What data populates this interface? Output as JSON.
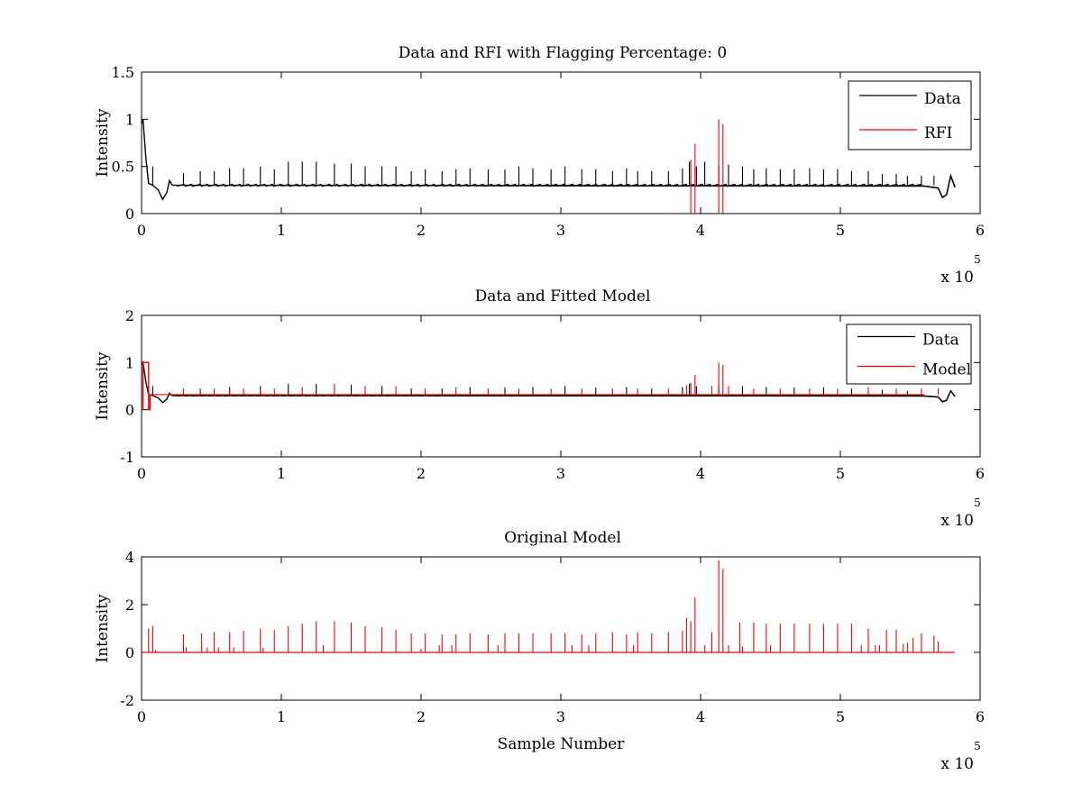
{
  "chart_data": [
    {
      "type": "line",
      "title": "Data and RFI with Flagging Percentage: 0",
      "xlabel": "",
      "ylabel": "Intensity",
      "xlim": [
        0,
        6
      ],
      "ylim": [
        0,
        1.5
      ],
      "xticks": [
        "0",
        "1",
        "2",
        "3",
        "4",
        "5",
        "6"
      ],
      "yticks": [
        "0",
        "0.5",
        "1",
        "1.5"
      ],
      "x_multiplier": {
        "base": "x 10",
        "power": "5"
      },
      "legend": {
        "position": "top-right",
        "entries": [
          {
            "label": "Data",
            "color": "#000000"
          },
          {
            "label": "RFI",
            "color": "#ff0000"
          }
        ]
      },
      "series": [
        {
          "name": "Data",
          "color": "#000000",
          "baseline": 0.3,
          "x": [
            0,
            0.01,
            0.03,
            0.05,
            0.08,
            0.12,
            0.15,
            0.18,
            0.2,
            0.22,
            0.25,
            5.6,
            5.7,
            5.73,
            5.76,
            5.79,
            5.82
          ],
          "y": [
            0.95,
            1.0,
            0.6,
            0.32,
            0.3,
            0.25,
            0.15,
            0.22,
            0.35,
            0.3,
            0.3,
            0.29,
            0.27,
            0.17,
            0.2,
            0.4,
            0.28
          ],
          "spikes_x": [
            0.08,
            0.3,
            0.42,
            0.52,
            0.63,
            0.73,
            0.85,
            0.95,
            1.05,
            1.15,
            1.25,
            1.38,
            1.5,
            1.6,
            1.72,
            1.82,
            1.93,
            2.03,
            2.15,
            2.25,
            2.35,
            2.48,
            2.6,
            2.7,
            2.8,
            2.93,
            3.03,
            3.15,
            3.25,
            3.37,
            3.47,
            3.55,
            3.65,
            3.77,
            3.87,
            3.92,
            3.97,
            4.03,
            4.13,
            4.2,
            4.3,
            4.38,
            4.47,
            4.57,
            4.67,
            4.78,
            4.88,
            4.98,
            5.08,
            5.2,
            5.3,
            5.4,
            5.48,
            5.58,
            5.67
          ],
          "spikes_y": [
            0.5,
            0.43,
            0.45,
            0.45,
            0.48,
            0.48,
            0.5,
            0.47,
            0.55,
            0.55,
            0.55,
            0.53,
            0.53,
            0.5,
            0.5,
            0.5,
            0.45,
            0.47,
            0.45,
            0.47,
            0.48,
            0.47,
            0.47,
            0.5,
            0.48,
            0.47,
            0.5,
            0.47,
            0.47,
            0.45,
            0.48,
            0.45,
            0.45,
            0.45,
            0.48,
            0.55,
            0.5,
            0.55,
            0.5,
            0.52,
            0.5,
            0.47,
            0.48,
            0.47,
            0.47,
            0.48,
            0.47,
            0.47,
            0.45,
            0.45,
            0.42,
            0.42,
            0.4,
            0.4,
            0.4
          ]
        },
        {
          "name": "RFI",
          "color": "#ff0000",
          "spikes_x": [
            3.93,
            3.96,
            4.13,
            4.16
          ],
          "spikes_y": [
            0.57,
            0.74,
            1.0,
            0.95
          ]
        }
      ]
    },
    {
      "type": "line",
      "title": "Data and Fitted Model",
      "xlabel": "",
      "ylabel": "Intensity",
      "xlim": [
        0,
        6
      ],
      "ylim": [
        -1,
        2
      ],
      "xticks": [
        "0",
        "1",
        "2",
        "3",
        "4",
        "5",
        "6"
      ],
      "yticks": [
        "-1",
        "0",
        "1",
        "2"
      ],
      "x_multiplier": {
        "base": "x 10",
        "power": "5"
      },
      "legend": {
        "position": "top-right",
        "entries": [
          {
            "label": "Data",
            "color": "#000000"
          },
          {
            "label": "Model",
            "color": "#ff0000"
          }
        ]
      },
      "series": [
        {
          "name": "Data",
          "color": "#000000",
          "baseline": 0.3,
          "x": [
            0,
            0.01,
            0.03,
            0.05,
            0.08,
            0.12,
            0.15,
            0.18,
            0.2,
            0.22,
            0.25,
            5.6,
            5.7,
            5.73,
            5.76,
            5.79,
            5.82
          ],
          "y": [
            0.95,
            1.0,
            0.6,
            0.32,
            0.3,
            0.25,
            0.15,
            0.22,
            0.35,
            0.3,
            0.3,
            0.29,
            0.27,
            0.17,
            0.2,
            0.4,
            0.28
          ],
          "spikes_x": [
            0.08,
            0.42,
            0.63,
            0.85,
            1.05,
            1.25,
            1.5,
            1.72,
            1.93,
            2.15,
            2.35,
            2.6,
            2.8,
            3.03,
            3.25,
            3.47,
            3.65,
            3.87,
            3.92,
            3.97,
            4.13,
            4.3,
            4.47,
            4.67,
            4.88,
            5.08,
            5.3,
            5.48
          ],
          "spikes_y": [
            0.5,
            0.45,
            0.48,
            0.5,
            0.55,
            0.55,
            0.53,
            0.5,
            0.45,
            0.45,
            0.48,
            0.47,
            0.48,
            0.5,
            0.47,
            0.48,
            0.45,
            0.48,
            0.55,
            0.5,
            0.5,
            0.5,
            0.48,
            0.47,
            0.47,
            0.45,
            0.42,
            0.4
          ]
        },
        {
          "name": "Model",
          "color": "#ff0000",
          "baseline": 0.32,
          "x": [
            0,
            0.01,
            0.01,
            0.05,
            0.05,
            0.06,
            0.06
          ],
          "y": [
            0,
            0,
            1.0,
            1.0,
            0.0,
            0.0,
            0.32
          ],
          "spikes_x": [
            0.3,
            0.42,
            0.52,
            0.63,
            0.73,
            0.85,
            0.95,
            1.15,
            1.38,
            1.6,
            1.82,
            2.03,
            2.25,
            2.48,
            2.7,
            2.93,
            3.15,
            3.37,
            3.55,
            3.77,
            3.9,
            3.93,
            3.96,
            4.08,
            4.13,
            4.16,
            4.2,
            4.38,
            4.57,
            4.78,
            4.98,
            5.2,
            5.4,
            5.58,
            5.7
          ],
          "spikes_y": [
            0.45,
            0.45,
            0.45,
            0.45,
            0.45,
            0.45,
            0.45,
            0.48,
            0.55,
            0.5,
            0.5,
            0.45,
            0.48,
            0.45,
            0.45,
            0.45,
            0.45,
            0.45,
            0.45,
            0.45,
            0.52,
            0.57,
            0.74,
            0.5,
            1.0,
            0.95,
            0.5,
            0.45,
            0.45,
            0.45,
            0.45,
            0.48,
            0.45,
            0.45,
            0.45
          ]
        }
      ]
    },
    {
      "type": "line",
      "title": "Original Model",
      "xlabel": "Sample Number",
      "ylabel": "Intensity",
      "xlim": [
        0,
        6
      ],
      "ylim": [
        -2,
        4
      ],
      "xticks": [
        "0",
        "1",
        "2",
        "3",
        "4",
        "5",
        "6"
      ],
      "yticks": [
        "-2",
        "0",
        "2",
        "4"
      ],
      "x_multiplier": {
        "base": "x 10",
        "power": "5"
      },
      "legend": null,
      "series": [
        {
          "name": "",
          "color": "#ff0000",
          "baseline": 0,
          "x_end": 5.82,
          "spikes_x": [
            0.05,
            0.08,
            0.1,
            0.3,
            0.32,
            0.43,
            0.47,
            0.52,
            0.55,
            0.63,
            0.66,
            0.73,
            0.85,
            0.87,
            0.95,
            1.05,
            1.15,
            1.25,
            1.3,
            1.38,
            1.5,
            1.6,
            1.72,
            1.82,
            1.93,
            2.0,
            2.03,
            2.13,
            2.15,
            2.22,
            2.25,
            2.35,
            2.48,
            2.55,
            2.6,
            2.7,
            2.8,
            2.93,
            3.03,
            3.08,
            3.15,
            3.2,
            3.25,
            3.37,
            3.47,
            3.52,
            3.55,
            3.65,
            3.77,
            3.87,
            3.9,
            3.93,
            3.96,
            4.03,
            4.08,
            4.13,
            4.16,
            4.2,
            4.28,
            4.3,
            4.38,
            4.47,
            4.5,
            4.57,
            4.67,
            4.78,
            4.88,
            4.98,
            5.08,
            5.15,
            5.2,
            5.25,
            5.28,
            5.33,
            5.4,
            5.45,
            5.48,
            5.52,
            5.58,
            5.67,
            5.7
          ],
          "spikes_y": [
            1.0,
            1.1,
            0.1,
            0.75,
            0.2,
            0.8,
            0.2,
            0.85,
            0.2,
            0.85,
            0.2,
            0.9,
            1.0,
            0.2,
            0.95,
            1.1,
            1.2,
            1.3,
            0.3,
            1.3,
            1.25,
            1.1,
            1.05,
            0.95,
            0.8,
            0.15,
            0.8,
            0.3,
            0.75,
            0.3,
            0.75,
            0.8,
            0.75,
            0.3,
            0.8,
            0.8,
            0.8,
            0.8,
            0.8,
            0.3,
            0.75,
            0.3,
            0.8,
            0.85,
            0.75,
            0.3,
            0.85,
            0.8,
            0.85,
            0.9,
            1.45,
            1.3,
            2.3,
            0.3,
            0.85,
            3.85,
            3.5,
            0.3,
            1.25,
            0.25,
            1.25,
            1.2,
            0.3,
            1.2,
            1.2,
            1.2,
            1.2,
            1.2,
            1.2,
            0.3,
            1.0,
            0.3,
            0.3,
            0.95,
            0.95,
            0.35,
            0.4,
            0.6,
            0.8,
            0.7,
            0.45
          ]
        }
      ]
    }
  ]
}
